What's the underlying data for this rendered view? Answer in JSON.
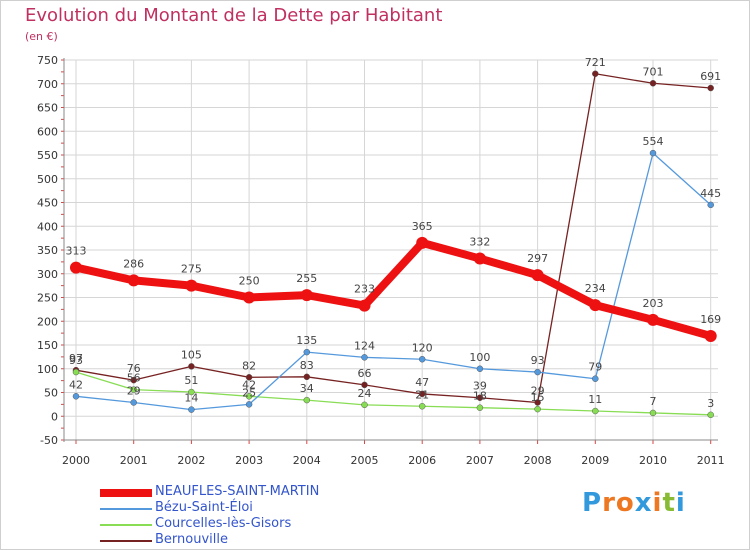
{
  "chart_data": {
    "type": "line",
    "title": "Evolution du Montant de la Dette par Habitant",
    "subtitle": "(en €)",
    "xlabel": "",
    "ylabel": "",
    "x": [
      "2000",
      "2001",
      "2002",
      "2003",
      "2004",
      "2005",
      "2006",
      "2007",
      "2008",
      "2009",
      "2010",
      "2011"
    ],
    "ylim": [
      -50,
      750
    ],
    "yticks": [
      -50,
      0,
      50,
      100,
      150,
      200,
      250,
      300,
      350,
      400,
      450,
      500,
      550,
      600,
      650,
      700,
      750
    ],
    "grid": true,
    "legend_position": "bottom-left",
    "series": [
      {
        "name": "NEAUFLES-SAINT-MARTIN",
        "color": "#ee1111",
        "values": [
          313,
          286,
          275,
          250,
          255,
          233,
          365,
          332,
          297,
          234,
          203,
          169
        ]
      },
      {
        "name": "Bézu-Saint-Éloi",
        "color": "#5599dd",
        "values": [
          42,
          29,
          14,
          25,
          135,
          124,
          120,
          100,
          93,
          79,
          554,
          445
        ]
      },
      {
        "name": "Courcelles-lès-Gisors",
        "color": "#88dd55",
        "values": [
          93,
          56,
          51,
          42,
          34,
          24,
          21,
          18,
          15,
          11,
          7,
          3
        ]
      },
      {
        "name": "Bernouville",
        "color": "#772222",
        "values": [
          97,
          76,
          105,
          82,
          83,
          66,
          47,
          39,
          29,
          721,
          701,
          691
        ]
      }
    ]
  },
  "logo": {
    "letters": [
      "P",
      "r",
      "o",
      "x",
      "i",
      "t",
      "i"
    ],
    "colors": [
      "#3399dd",
      "#ee7722",
      "#ee7722",
      "#3399dd",
      "#ee7722",
      "#88bb33",
      "#3399dd"
    ]
  }
}
